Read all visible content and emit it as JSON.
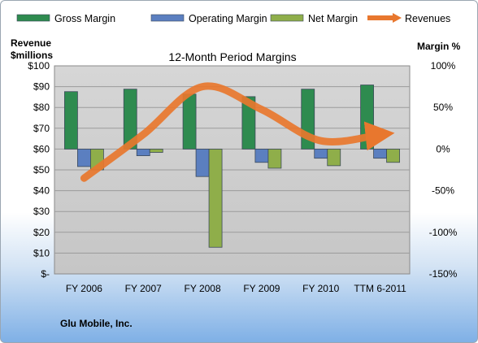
{
  "chart_data": {
    "type": "bar",
    "title": "12-Month Period Margins",
    "company": "Glu Mobile, Inc.",
    "ylabel_left": "Revenue\n$millions",
    "ylabel_right": "Margin %",
    "categories": [
      "FY 2006",
      "FY 2007",
      "FY 2008",
      "FY 2009",
      "FY 2010",
      "TTM 6-2011"
    ],
    "left_axis": {
      "min": 0,
      "max": 100,
      "step": 10,
      "tick_labels": [
        "$-",
        "$10",
        "$20",
        "$30",
        "$40",
        "$50",
        "$60",
        "$70",
        "$80",
        "$90",
        "$100"
      ]
    },
    "right_axis": {
      "min": -150,
      "max": 100,
      "step": 50,
      "tick_labels": [
        "-150%",
        "-100%",
        "-50%",
        "0%",
        "50%",
        "100%"
      ]
    },
    "series": [
      {
        "name": "Gross Margin",
        "type": "bar",
        "axis": "right",
        "color": "#2e8b4f",
        "values": [
          69,
          72,
          66,
          63,
          72,
          77
        ]
      },
      {
        "name": "Operating Margin",
        "type": "bar",
        "axis": "right",
        "color": "#5b7fc0",
        "values": [
          -21,
          -8,
          -33,
          -16,
          -11,
          -11
        ]
      },
      {
        "name": "Net Margin",
        "type": "bar",
        "axis": "right",
        "color": "#8fae4a",
        "values": [
          -25,
          -4,
          -118,
          -23,
          -20,
          -16
        ]
      },
      {
        "name": "Revenues",
        "type": "line",
        "axis": "left",
        "color": "#e8772e",
        "values": [
          46,
          67,
          90,
          79,
          64,
          67
        ]
      }
    ],
    "legend_position": "top",
    "grid": true
  }
}
